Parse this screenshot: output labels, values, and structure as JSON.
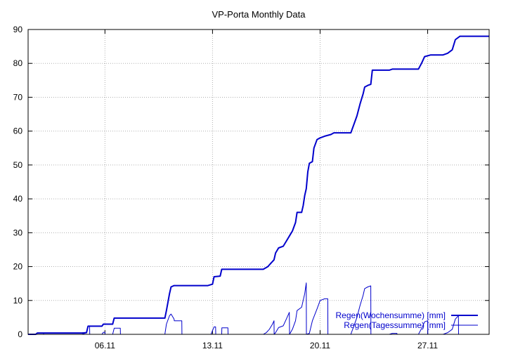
{
  "chart_data": {
    "type": "line",
    "title": "VP-Porta Monthly Data",
    "xlabel": "",
    "ylabel": "",
    "x_unit": "day of November",
    "xlim": [
      1,
      31
    ],
    "ylim": [
      0,
      90
    ],
    "yticks": [
      0,
      10,
      20,
      30,
      40,
      50,
      60,
      70,
      80,
      90
    ],
    "xticks": [
      {
        "value": 6,
        "label": "06.11"
      },
      {
        "value": 13,
        "label": "13.11"
      },
      {
        "value": 20,
        "label": "20.11"
      },
      {
        "value": 27,
        "label": "27.11"
      }
    ],
    "grid": true,
    "legend_position": "bottom-right",
    "colors": {
      "series": "#0000cc",
      "grid": "#b0b0b0",
      "axis": "#000000"
    },
    "series": [
      {
        "name": "Regen(Wochensumme) [mm]",
        "line_width": 2,
        "points": [
          [
            1.0,
            0.0
          ],
          [
            1.5,
            0.0
          ],
          [
            1.6,
            0.4
          ],
          [
            4.5,
            0.4
          ],
          [
            4.8,
            0.5
          ],
          [
            4.9,
            2.4
          ],
          [
            5.8,
            2.4
          ],
          [
            5.9,
            3.0
          ],
          [
            6.5,
            3.0
          ],
          [
            6.6,
            4.8
          ],
          [
            9.9,
            4.8
          ],
          [
            10.0,
            7.0
          ],
          [
            10.1,
            9.5
          ],
          [
            10.2,
            12.0
          ],
          [
            10.3,
            14.0
          ],
          [
            10.5,
            14.4
          ],
          [
            12.7,
            14.4
          ],
          [
            13.0,
            14.8
          ],
          [
            13.1,
            17.0
          ],
          [
            13.5,
            17.2
          ],
          [
            13.6,
            19.2
          ],
          [
            16.3,
            19.2
          ],
          [
            16.6,
            20.0
          ],
          [
            16.8,
            21.0
          ],
          [
            17.0,
            22.0
          ],
          [
            17.1,
            24.0
          ],
          [
            17.3,
            25.5
          ],
          [
            17.6,
            26.0
          ],
          [
            17.8,
            27.5
          ],
          [
            18.0,
            29.0
          ],
          [
            18.2,
            30.5
          ],
          [
            18.4,
            33.0
          ],
          [
            18.5,
            36.0
          ],
          [
            18.8,
            36.0
          ],
          [
            18.9,
            38.0
          ],
          [
            19.0,
            41.0
          ],
          [
            19.1,
            43.0
          ],
          [
            19.2,
            48.0
          ],
          [
            19.3,
            50.5
          ],
          [
            19.5,
            51.0
          ],
          [
            19.6,
            55.0
          ],
          [
            19.8,
            57.5
          ],
          [
            20.0,
            58.0
          ],
          [
            20.3,
            58.5
          ],
          [
            20.7,
            59.0
          ],
          [
            20.9,
            59.5
          ],
          [
            22.0,
            59.5
          ],
          [
            22.2,
            62.0
          ],
          [
            22.4,
            64.5
          ],
          [
            22.6,
            68.0
          ],
          [
            22.8,
            71.0
          ],
          [
            22.9,
            73.0
          ],
          [
            23.1,
            73.5
          ],
          [
            23.3,
            73.8
          ],
          [
            23.4,
            78.0
          ],
          [
            24.5,
            78.0
          ],
          [
            24.7,
            78.3
          ],
          [
            26.4,
            78.3
          ],
          [
            26.6,
            80.0
          ],
          [
            26.8,
            82.0
          ],
          [
            27.2,
            82.5
          ],
          [
            28.0,
            82.5
          ],
          [
            28.3,
            83.0
          ],
          [
            28.6,
            84.0
          ],
          [
            28.8,
            87.0
          ],
          [
            29.1,
            88.0
          ],
          [
            31.0,
            88.0
          ]
        ]
      },
      {
        "name": "Regen(Tagessumme) [mm]",
        "line_width": 1,
        "points": [
          [
            1.0,
            0.0
          ],
          [
            1.5,
            0.0
          ],
          [
            1.6,
            0.4
          ],
          [
            2.0,
            0.4
          ],
          [
            2.01,
            0.0
          ],
          [
            4.5,
            0.0
          ],
          [
            4.8,
            0.5
          ],
          [
            4.9,
            2.4
          ],
          [
            5.0,
            2.4
          ],
          [
            5.01,
            0.0
          ],
          [
            5.8,
            0.0
          ],
          [
            5.9,
            0.6
          ],
          [
            6.0,
            0.6
          ],
          [
            6.01,
            0.0
          ],
          [
            6.5,
            0.0
          ],
          [
            6.6,
            1.8
          ],
          [
            7.0,
            1.8
          ],
          [
            7.01,
            0.0
          ],
          [
            9.9,
            0.0
          ],
          [
            10.0,
            3.0
          ],
          [
            10.2,
            5.5
          ],
          [
            10.3,
            6.0
          ],
          [
            10.5,
            4.5
          ],
          [
            10.51,
            4.0
          ],
          [
            11.0,
            4.0
          ],
          [
            11.01,
            0.0
          ],
          [
            12.9,
            0.0
          ],
          [
            13.1,
            2.2
          ],
          [
            13.2,
            2.2
          ],
          [
            13.21,
            0.0
          ],
          [
            13.6,
            0.0
          ],
          [
            13.61,
            1.9
          ],
          [
            14.0,
            1.9
          ],
          [
            14.01,
            0.0
          ],
          [
            16.3,
            0.0
          ],
          [
            16.5,
            0.5
          ],
          [
            16.7,
            1.5
          ],
          [
            16.9,
            3.0
          ],
          [
            17.0,
            4.0
          ],
          [
            17.01,
            0.0
          ],
          [
            17.1,
            0.5
          ],
          [
            17.3,
            2.0
          ],
          [
            17.6,
            2.5
          ],
          [
            17.8,
            4.5
          ],
          [
            18.0,
            6.5
          ],
          [
            18.01,
            0.0
          ],
          [
            18.2,
            1.5
          ],
          [
            18.4,
            4.0
          ],
          [
            18.5,
            7.0
          ],
          [
            18.8,
            8.0
          ],
          [
            18.9,
            10.0
          ],
          [
            19.0,
            12.0
          ],
          [
            19.1,
            15.2
          ],
          [
            19.11,
            0.0
          ],
          [
            19.3,
            0.3
          ],
          [
            19.5,
            4.0
          ],
          [
            19.8,
            7.5
          ],
          [
            20.0,
            10.0
          ],
          [
            20.3,
            10.5
          ],
          [
            20.5,
            10.5
          ],
          [
            20.51,
            0.0
          ],
          [
            22.0,
            0.0
          ],
          [
            22.2,
            2.5
          ],
          [
            22.4,
            5.0
          ],
          [
            22.6,
            8.5
          ],
          [
            22.8,
            11.5
          ],
          [
            22.9,
            13.5
          ],
          [
            23.1,
            14.0
          ],
          [
            23.3,
            14.3
          ],
          [
            23.31,
            0.0
          ],
          [
            24.5,
            0.0
          ],
          [
            24.7,
            0.3
          ],
          [
            25.0,
            0.3
          ],
          [
            25.01,
            0.0
          ],
          [
            26.4,
            0.0
          ],
          [
            26.6,
            1.7
          ],
          [
            26.8,
            3.7
          ],
          [
            27.0,
            4.0
          ],
          [
            27.01,
            0.0
          ],
          [
            28.0,
            0.0
          ],
          [
            28.3,
            0.5
          ],
          [
            28.6,
            1.5
          ],
          [
            28.8,
            4.5
          ],
          [
            29.0,
            5.5
          ],
          [
            29.01,
            0.0
          ],
          [
            31.0,
            0.0
          ]
        ]
      }
    ]
  }
}
